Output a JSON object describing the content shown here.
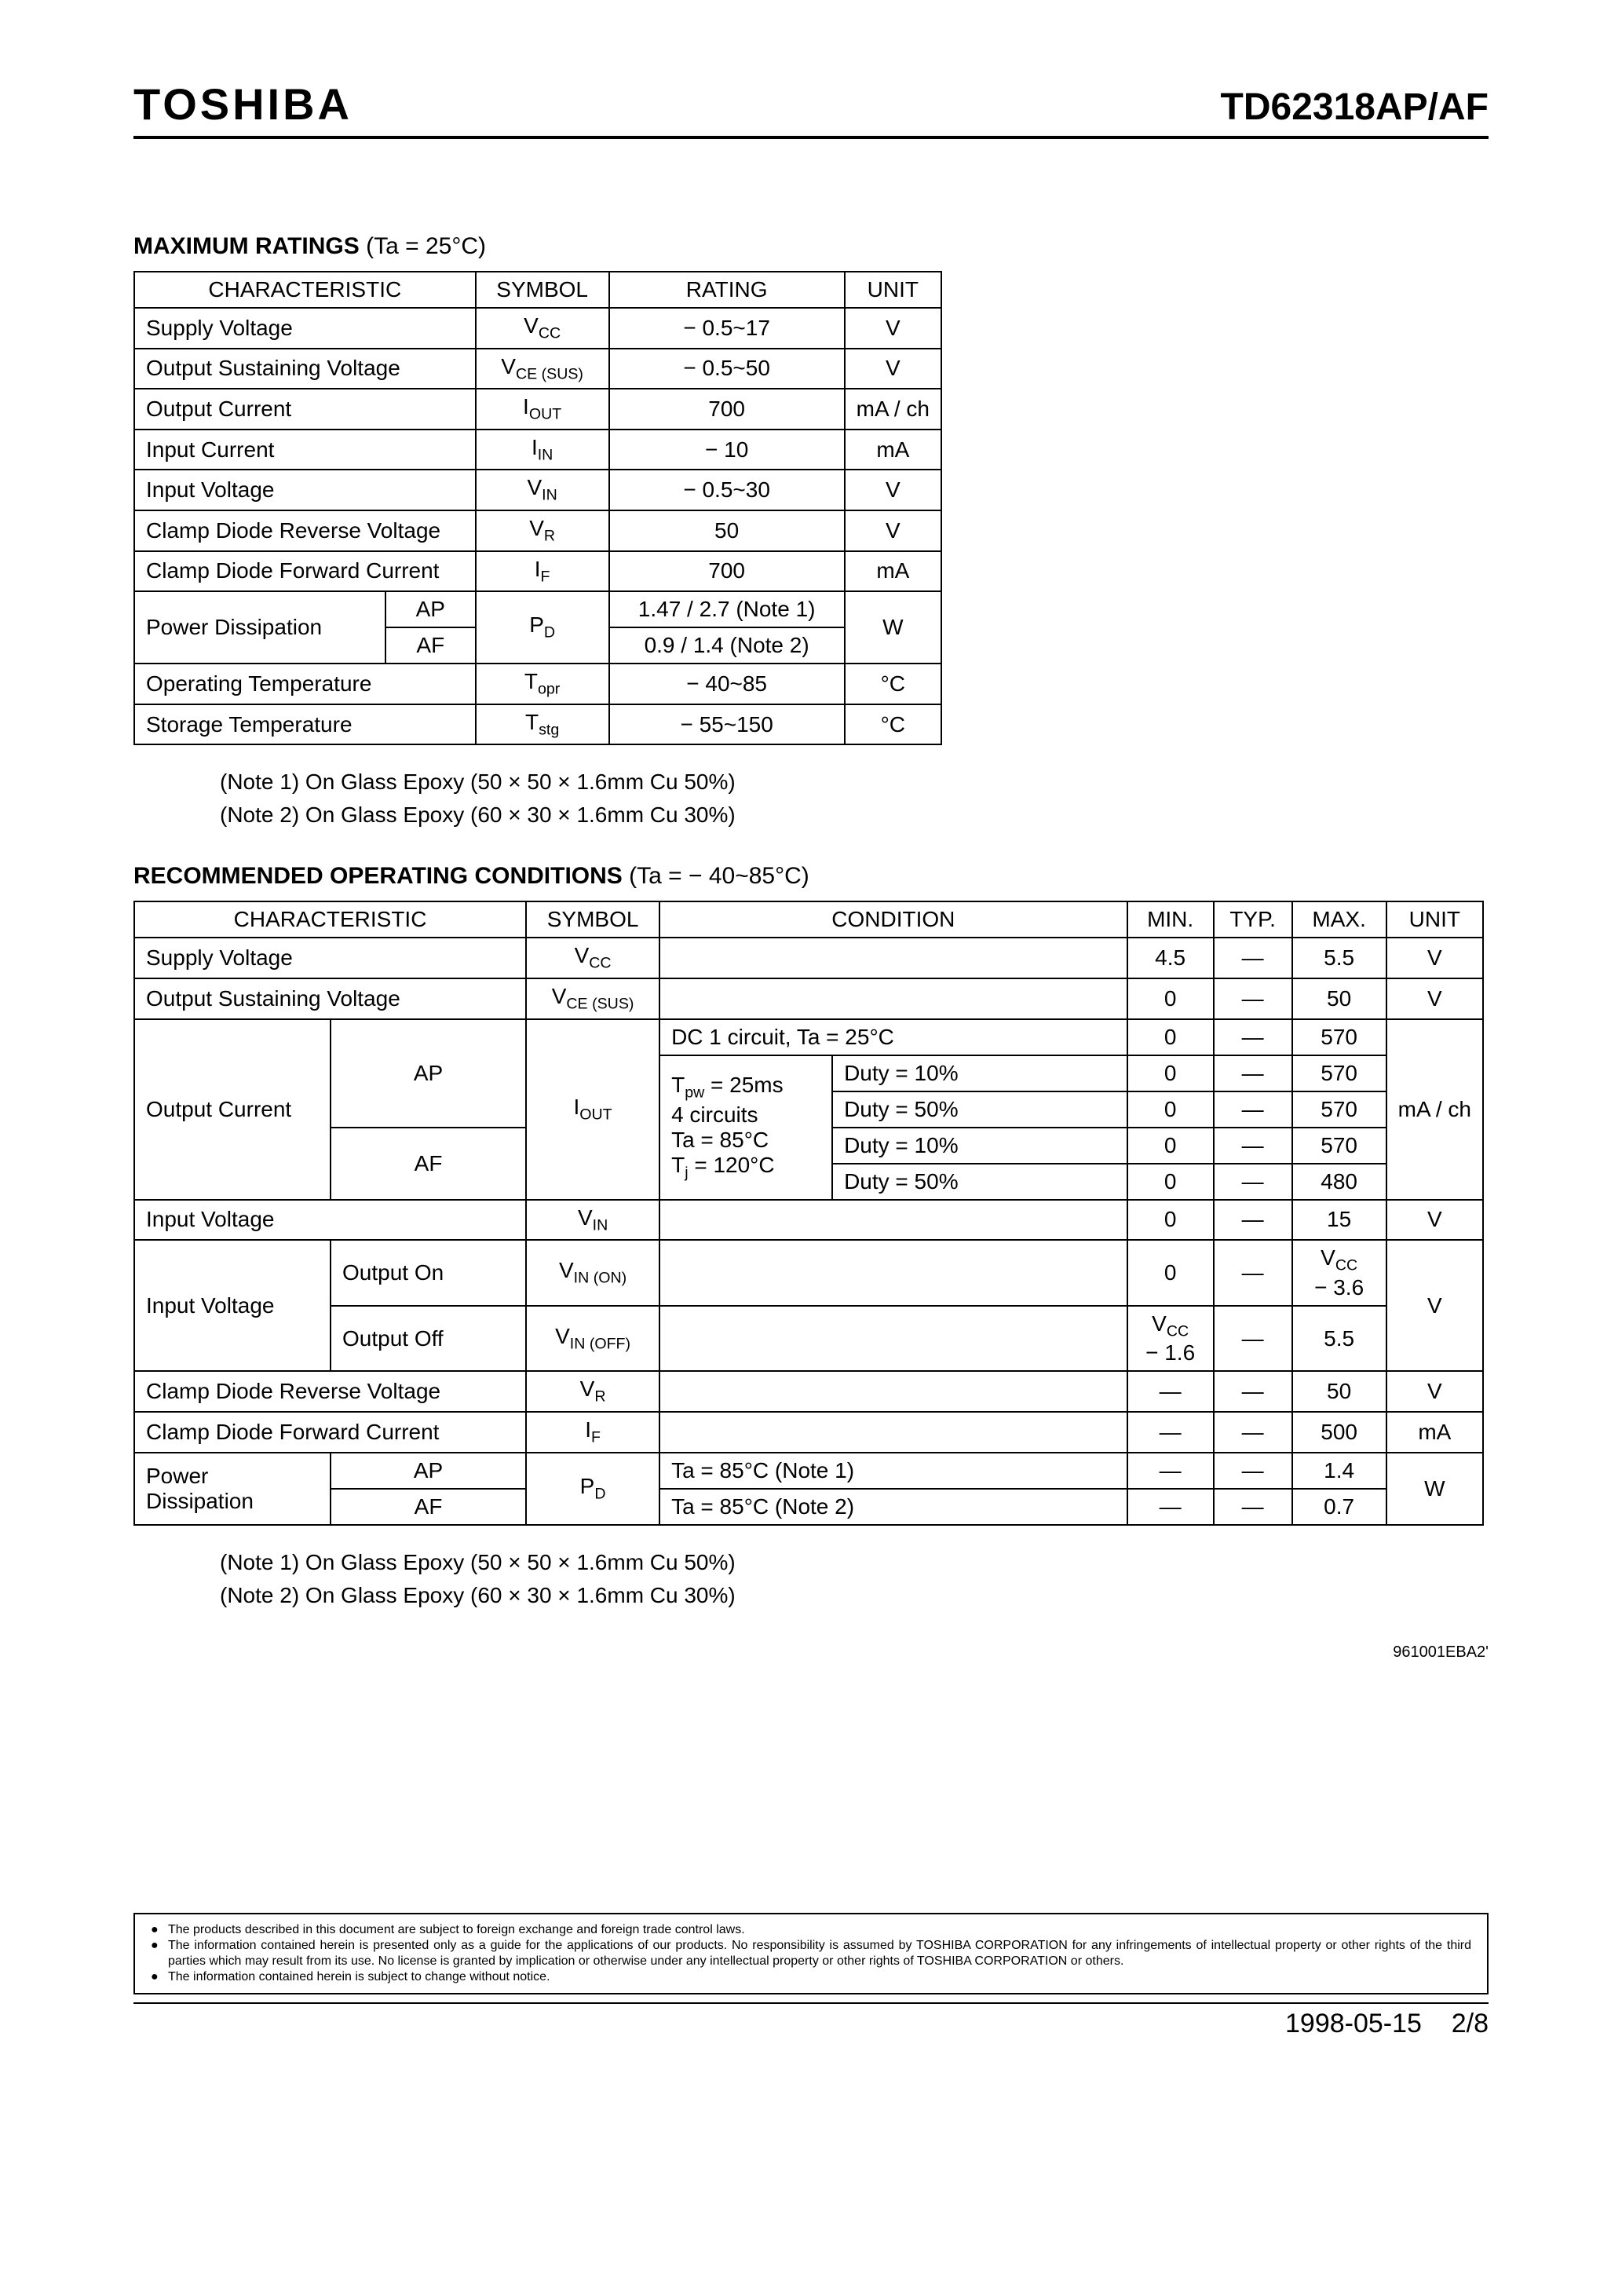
{
  "header": {
    "brand": "TOSHIBA",
    "part_number": "TD62318AP/AF"
  },
  "max_ratings": {
    "title": "MAXIMUM RATINGS",
    "title_cond": "(Ta = 25°C)",
    "headers": {
      "char": "CHARACTERISTIC",
      "symbol": "SYMBOL",
      "rating": "RATING",
      "unit": "UNIT"
    },
    "rows": {
      "supply_voltage": {
        "char": "Supply Voltage",
        "symbol_html": "V<span class='sub'>CC</span>",
        "rating": "− 0.5~17",
        "unit": "V"
      },
      "out_sus_voltage": {
        "char": "Output Sustaining Voltage",
        "symbol_html": "V<span class='sub'>CE (SUS)</span>",
        "rating": "− 0.5~50",
        "unit": "V"
      },
      "output_current": {
        "char": "Output Current",
        "symbol_html": "I<span class='sub'>OUT</span>",
        "rating": "700",
        "unit": "mA / ch"
      },
      "input_current": {
        "char": "Input Current",
        "symbol_html": "I<span class='sub'>IN</span>",
        "rating": "− 10",
        "unit": "mA"
      },
      "input_voltage": {
        "char": "Input Voltage",
        "symbol_html": "V<span class='sub'>IN</span>",
        "rating": "− 0.5~30",
        "unit": "V"
      },
      "clamp_rev_voltage": {
        "char": "Clamp Diode Reverse Voltage",
        "symbol_html": "V<span class='sub'>R</span>",
        "rating": "50",
        "unit": "V"
      },
      "clamp_fwd_current": {
        "char": "Clamp Diode Forward Current",
        "symbol_html": "I<span class='sub'>F</span>",
        "rating": "700",
        "unit": "mA"
      },
      "power_dissipation": {
        "char": "Power Dissipation",
        "variant_ap": "AP",
        "variant_af": "AF",
        "symbol_html": "P<span class='sub'>D</span>",
        "rating_ap": "1.47 / 2.7 (Note 1)",
        "rating_af": "0.9 / 1.4   (Note 2)",
        "unit": "W"
      },
      "operating_temp": {
        "char": "Operating Temperature",
        "symbol_html": "T<span class='sub'>opr</span>",
        "rating": "− 40~85",
        "unit": "°C"
      },
      "storage_temp": {
        "char": "Storage Temperature",
        "symbol_html": "T<span class='sub'>stg</span>",
        "rating": "− 55~150",
        "unit": "°C"
      }
    },
    "note1": "(Note 1)   On Glass Epoxy (50 × 50 × 1.6mm Cu 50%)",
    "note2": "(Note 2)   On Glass Epoxy (60 × 30 × 1.6mm Cu 30%)"
  },
  "rec_cond": {
    "title": "RECOMMENDED OPERATING CONDITIONS",
    "title_cond": "(Ta = − 40~85°C)",
    "headers": {
      "char": "CHARACTERISTIC",
      "symbol": "SYMBOL",
      "condition": "CONDITION",
      "min": "MIN.",
      "typ": "TYP.",
      "max": "MAX.",
      "unit": "UNIT"
    },
    "rows": {
      "supply_voltage": {
        "char": "Supply Voltage",
        "symbol_html": "V<span class='sub'>CC</span>",
        "cond": "",
        "min": "4.5",
        "typ": "—",
        "max": "5.5",
        "unit": "V"
      },
      "out_sus_voltage": {
        "char": "Output Sustaining Voltage",
        "symbol_html": "V<span class='sub'>CE (SUS)</span>",
        "cond": "",
        "min": "0",
        "typ": "—",
        "max": "50",
        "unit": "V"
      },
      "output_current": {
        "char": "Output Current",
        "variant_ap": "AP",
        "variant_af": "AF",
        "symbol_html": "I<span class='sub'>OUT</span>",
        "cond_dc": "DC 1 circuit, Ta = 25°C",
        "dc": {
          "min": "0",
          "typ": "—",
          "max": "570"
        },
        "cond_left_html": "T<span class='sub'>pw</span> = 25ms<br>4 circuits<br>Ta = 85°C<br>T<span class='sub'>j</span> = 120°C",
        "duty10": "Duty = 10%",
        "duty50": "Duty = 50%",
        "ap10": {
          "min": "0",
          "typ": "—",
          "max": "570"
        },
        "ap50": {
          "min": "0",
          "typ": "—",
          "max": "570"
        },
        "af10": {
          "min": "0",
          "typ": "—",
          "max": "570"
        },
        "af50": {
          "min": "0",
          "typ": "—",
          "max": "480"
        },
        "unit": "mA / ch"
      },
      "input_voltage": {
        "char": "Input Voltage",
        "symbol_html": "V<span class='sub'>IN</span>",
        "cond": "",
        "min": "0",
        "typ": "—",
        "max": "15",
        "unit": "V"
      },
      "input_voltage_onoff": {
        "char": "Input Voltage",
        "on_label": "Output On",
        "off_label": "Output Off",
        "sym_on_html": "V<span class='sub'>IN (ON)</span>",
        "sym_off_html": "V<span class='sub'>IN (OFF)</span>",
        "on": {
          "min": "0",
          "typ": "—",
          "max_html": "V<span class='sub'>CC</span><br>− 3.6"
        },
        "off": {
          "min_html": "V<span class='sub'>CC</span><br>− 1.6",
          "typ": "—",
          "max": "5.5"
        },
        "unit": "V"
      },
      "clamp_rev_voltage": {
        "char": "Clamp Diode Reverse Voltage",
        "symbol_html": "V<span class='sub'>R</span>",
        "cond": "",
        "min": "—",
        "typ": "—",
        "max": "50",
        "unit": "V"
      },
      "clamp_fwd_current": {
        "char": "Clamp Diode Forward Current",
        "symbol_html": "I<span class='sub'>F</span>",
        "cond": "",
        "min": "—",
        "typ": "—",
        "max": "500",
        "unit": "mA"
      },
      "power_dissipation": {
        "char": "Power Dissipation",
        "variant_ap": "AP",
        "variant_af": "AF",
        "symbol_html": "P<span class='sub'>D</span>",
        "cond_ap": "Ta = 85°C (Note 1)",
        "cond_af": "Ta = 85°C (Note 2)",
        "ap": {
          "min": "—",
          "typ": "—",
          "max": "1.4"
        },
        "af": {
          "min": "—",
          "typ": "—",
          "max": "0.7"
        },
        "unit": "W"
      }
    },
    "note1": "(Note 1)   On Glass Epoxy (50 × 50 × 1.6mm Cu 50%)",
    "note2": "(Note 2)   On Glass Epoxy (60 × 30 × 1.6mm Cu 30%)"
  },
  "doc_code": "961001EBA2'",
  "disclaimer": {
    "d1": "The products described in this document are subject to foreign exchange and foreign trade control laws.",
    "d2": "The information contained herein is presented only as a guide for the applications of our products. No responsibility is assumed by TOSHIBA CORPORATION for any infringements of intellectual property or other rights of the third parties which may result from its use. No license is granted by implication or otherwise under any intellectual property or other rights of TOSHIBA CORPORATION or others.",
    "d3": "The information contained herein is subject to change without notice."
  },
  "footer": {
    "date": "1998-05-15",
    "page": "2/8"
  }
}
